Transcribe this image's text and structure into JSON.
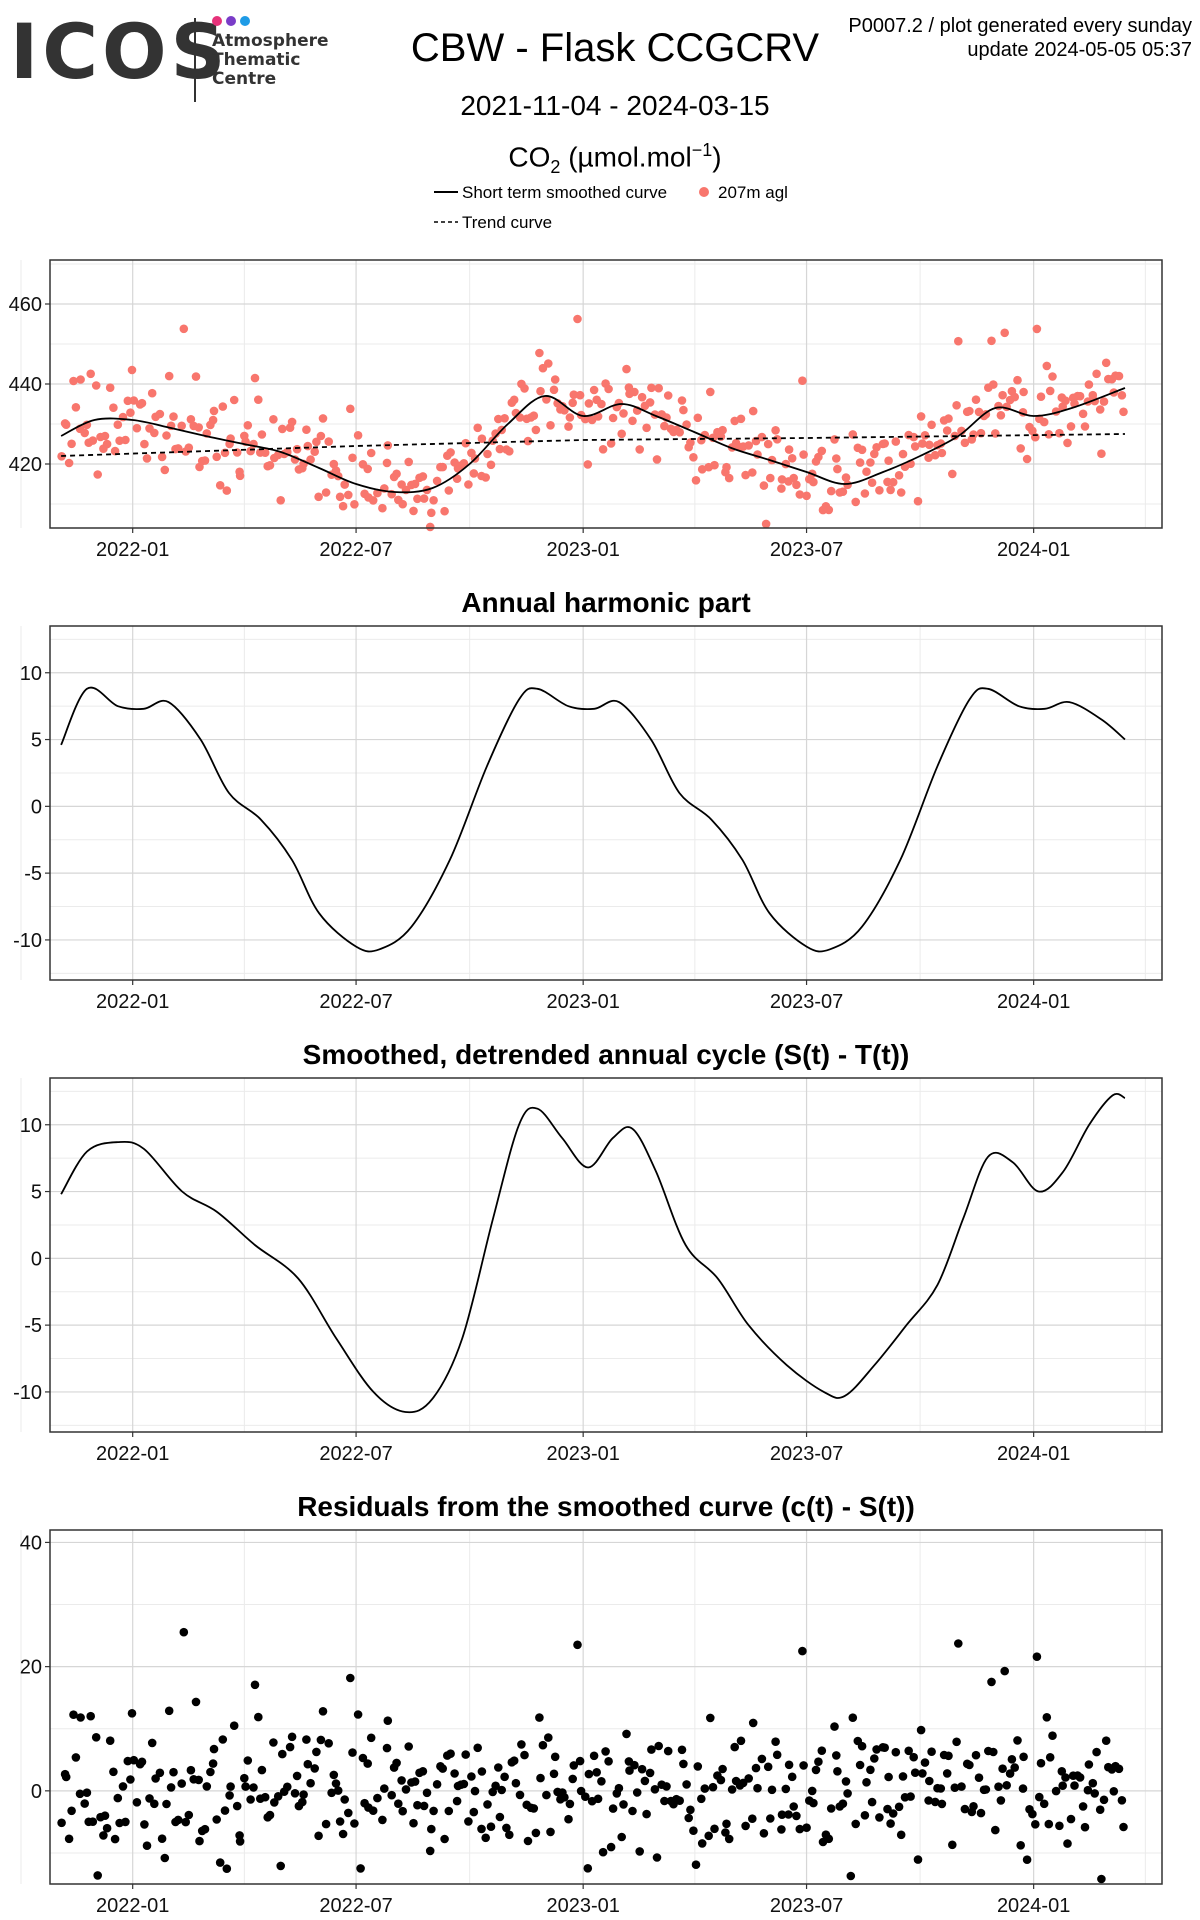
{
  "header": {
    "logo_text": "ICOS",
    "logo_sub": [
      "Atmosphere",
      "Thematic",
      "Centre"
    ],
    "logo_dot_colors": [
      "#e6327a",
      "#7a3cc8",
      "#1e9be6"
    ],
    "title": "CBW - Flask CCGCRV",
    "date_range": "2021-11-04 - 2024-03-15",
    "species_main": "CO",
    "species_sub": "2",
    "species_unit": "(µmol.mol",
    "species_exp": "−1",
    "species_close": ")",
    "meta_line1": "P0007.2 / plot generated every sunday",
    "meta_line2": "update  2024-05-05 05:37"
  },
  "legend": {
    "items": [
      {
        "label": "Short term smoothed curve",
        "style": "solid"
      },
      {
        "label": "207m agl",
        "style": "point",
        "color": "#f8766d"
      },
      {
        "label": "Trend curve",
        "style": "dashed"
      }
    ]
  },
  "chart_data": [
    {
      "type": "scatter",
      "title": "",
      "x_range": [
        "2021-10-26",
        "2024-04-14"
      ],
      "ylim": [
        404,
        471
      ],
      "yticks": [
        420,
        440,
        460
      ],
      "xticks": [
        "2022-01",
        "2022-07",
        "2023-01",
        "2023-07",
        "2024-01"
      ],
      "grid": true,
      "point_color": "#f8766d",
      "series": [
        {
          "name": "207m agl",
          "kind": "points",
          "seed": 11,
          "x_start": "2021-11-04",
          "x_end": "2024-03-15",
          "count": 440,
          "noise_sd": 6
        },
        {
          "name": "Short term smoothed curve",
          "kind": "line",
          "points": [
            [
              "2021-11-04",
              427
            ],
            [
              "2021-12-01",
              431
            ],
            [
              "2022-01-01",
              431
            ],
            [
              "2022-02-01",
              429
            ],
            [
              "2022-03-01",
              427
            ],
            [
              "2022-04-01",
              425
            ],
            [
              "2022-05-01",
              423
            ],
            [
              "2022-06-01",
              419
            ],
            [
              "2022-07-01",
              415
            ],
            [
              "2022-08-01",
              413
            ],
            [
              "2022-09-01",
              414
            ],
            [
              "2022-10-01",
              420
            ],
            [
              "2022-11-01",
              430
            ],
            [
              "2022-12-01",
              437
            ],
            [
              "2023-01-01",
              432
            ],
            [
              "2023-02-01",
              435
            ],
            [
              "2023-03-01",
              432
            ],
            [
              "2023-04-01",
              428
            ],
            [
              "2023-05-01",
              424
            ],
            [
              "2023-06-01",
              421
            ],
            [
              "2023-07-01",
              418
            ],
            [
              "2023-08-01",
              415
            ],
            [
              "2023-09-01",
              418
            ],
            [
              "2023-10-01",
              422
            ],
            [
              "2023-11-01",
              427
            ],
            [
              "2023-12-01",
              434
            ],
            [
              "2024-01-01",
              432
            ],
            [
              "2024-02-01",
              434
            ],
            [
              "2024-03-15",
              439
            ]
          ]
        },
        {
          "name": "Trend curve",
          "kind": "dashed",
          "points": [
            [
              "2021-11-04",
              422
            ],
            [
              "2022-07-01",
              424.5
            ],
            [
              "2023-01-01",
              426
            ],
            [
              "2023-07-01",
              426.5
            ],
            [
              "2024-03-15",
              427.5
            ]
          ]
        }
      ]
    },
    {
      "type": "line",
      "title": "Annual harmonic part",
      "x_range": [
        "2021-10-26",
        "2024-04-14"
      ],
      "ylim": [
        -13,
        13.5
      ],
      "yticks": [
        -10,
        -5,
        0,
        5,
        10
      ],
      "xticks": [
        "2022-01",
        "2022-07",
        "2023-01",
        "2023-07",
        "2024-01"
      ],
      "grid": true,
      "series": [
        {
          "kind": "line",
          "points": [
            [
              "2021-11-04",
              4.6
            ],
            [
              "2021-11-25",
              8.8
            ],
            [
              "2021-12-20",
              7.5
            ],
            [
              "2022-01-10",
              7.3
            ],
            [
              "2022-01-30",
              7.8
            ],
            [
              "2022-02-25",
              5.0
            ],
            [
              "2022-03-20",
              1.0
            ],
            [
              "2022-04-15",
              -1.0
            ],
            [
              "2022-05-10",
              -4.0
            ],
            [
              "2022-06-01",
              -8.0
            ],
            [
              "2022-07-01",
              -10.5
            ],
            [
              "2022-07-20",
              -10.7
            ],
            [
              "2022-08-15",
              -9.0
            ],
            [
              "2022-09-15",
              -4.0
            ],
            [
              "2022-10-15",
              3.0
            ],
            [
              "2022-11-10",
              8.0
            ],
            [
              "2022-11-25",
              8.8
            ],
            [
              "2022-12-20",
              7.5
            ],
            [
              "2023-01-10",
              7.3
            ],
            [
              "2023-01-30",
              7.8
            ],
            [
              "2023-02-25",
              5.0
            ],
            [
              "2023-03-20",
              1.0
            ],
            [
              "2023-04-15",
              -1.0
            ],
            [
              "2023-05-10",
              -4.0
            ],
            [
              "2023-06-01",
              -8.0
            ],
            [
              "2023-07-01",
              -10.5
            ],
            [
              "2023-07-20",
              -10.7
            ],
            [
              "2023-08-15",
              -9.0
            ],
            [
              "2023-09-15",
              -4.0
            ],
            [
              "2023-10-15",
              3.0
            ],
            [
              "2023-11-10",
              8.0
            ],
            [
              "2023-11-25",
              8.8
            ],
            [
              "2023-12-20",
              7.5
            ],
            [
              "2024-01-10",
              7.3
            ],
            [
              "2024-01-30",
              7.8
            ],
            [
              "2024-02-25",
              6.5
            ],
            [
              "2024-03-15",
              5.0
            ]
          ]
        }
      ]
    },
    {
      "type": "line",
      "title": "Smoothed, detrended annual cycle (S(t) - T(t))",
      "x_range": [
        "2021-10-26",
        "2024-04-14"
      ],
      "ylim": [
        -13,
        13.5
      ],
      "yticks": [
        -10,
        -5,
        0,
        5,
        10
      ],
      "xticks": [
        "2022-01",
        "2022-07",
        "2023-01",
        "2023-07",
        "2024-01"
      ],
      "grid": true,
      "series": [
        {
          "kind": "line",
          "points": [
            [
              "2021-11-04",
              4.8
            ],
            [
              "2021-11-25",
              8.0
            ],
            [
              "2021-12-20",
              8.7
            ],
            [
              "2022-01-10",
              8.2
            ],
            [
              "2022-02-10",
              5.0
            ],
            [
              "2022-03-10",
              3.5
            ],
            [
              "2022-04-10",
              1.0
            ],
            [
              "2022-05-15",
              -1.5
            ],
            [
              "2022-06-15",
              -6.0
            ],
            [
              "2022-07-15",
              -10.0
            ],
            [
              "2022-08-10",
              -11.5
            ],
            [
              "2022-09-01",
              -10.5
            ],
            [
              "2022-09-25",
              -6.0
            ],
            [
              "2022-10-20",
              3.0
            ],
            [
              "2022-11-10",
              10.0
            ],
            [
              "2022-11-25",
              11.2
            ],
            [
              "2022-12-15",
              9.0
            ],
            [
              "2023-01-05",
              6.8
            ],
            [
              "2023-01-25",
              9.0
            ],
            [
              "2023-02-10",
              9.7
            ],
            [
              "2023-03-01",
              6.5
            ],
            [
              "2023-03-25",
              1.0
            ],
            [
              "2023-04-20",
              -1.5
            ],
            [
              "2023-05-15",
              -5.0
            ],
            [
              "2023-06-15",
              -8.0
            ],
            [
              "2023-07-15",
              -10.0
            ],
            [
              "2023-08-01",
              -10.3
            ],
            [
              "2023-08-25",
              -8.0
            ],
            [
              "2023-09-20",
              -5.0
            ],
            [
              "2023-10-15",
              -2.0
            ],
            [
              "2023-11-05",
              3.0
            ],
            [
              "2023-11-25",
              7.6
            ],
            [
              "2023-12-15",
              7.2
            ],
            [
              "2024-01-05",
              5.0
            ],
            [
              "2024-01-25",
              6.5
            ],
            [
              "2024-02-15",
              10.0
            ],
            [
              "2024-03-05",
              12.2
            ],
            [
              "2024-03-15",
              12.0
            ]
          ]
        }
      ]
    },
    {
      "type": "scatter",
      "title": "Residuals from the smoothed curve (c(t) - S(t))",
      "x_range": [
        "2021-10-26",
        "2024-04-14"
      ],
      "ylim": [
        -15,
        42
      ],
      "yticks": [
        0,
        20,
        40
      ],
      "xticks": [
        "2022-01",
        "2022-07",
        "2023-01",
        "2023-07",
        "2024-01"
      ],
      "grid": true,
      "point_color": "#000000",
      "series": [
        {
          "kind": "points",
          "seed": 11,
          "x_start": "2021-11-04",
          "x_end": "2024-03-15",
          "count": 440,
          "noise_sd": 6
        }
      ]
    }
  ]
}
